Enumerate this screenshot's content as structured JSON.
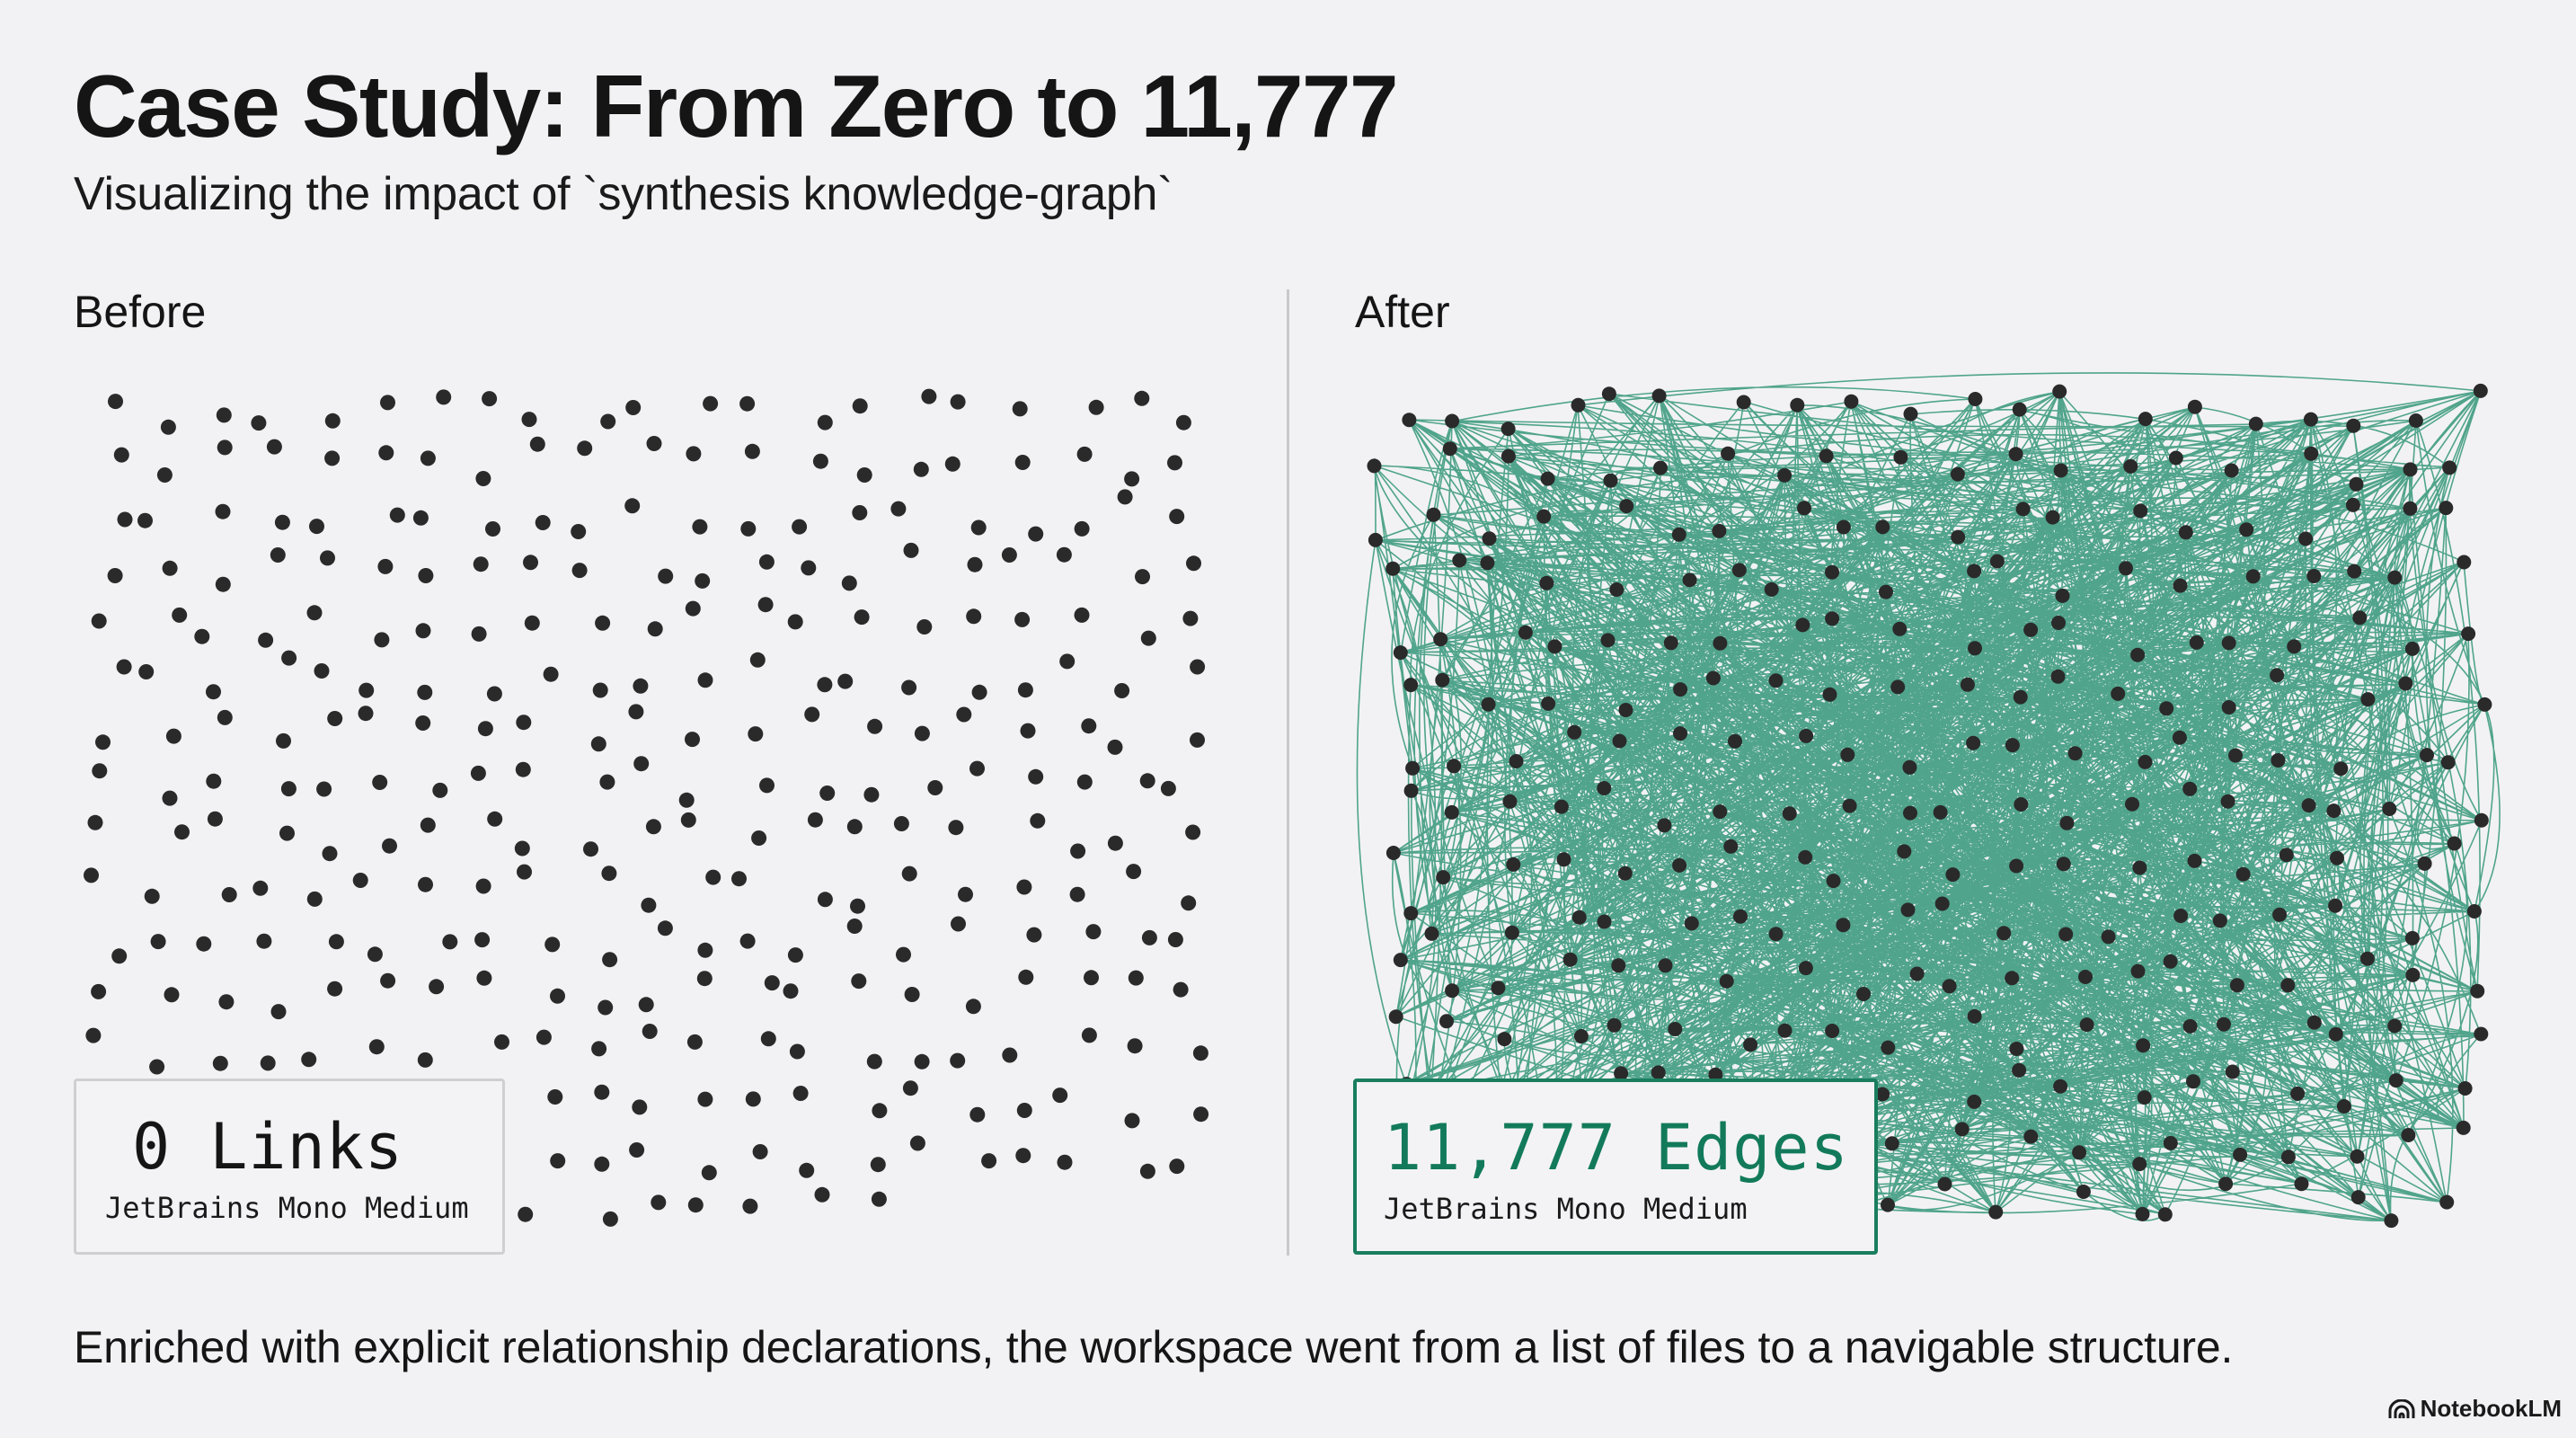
{
  "header": {
    "title": "Case Study: From Zero to 11,777",
    "subtitle": "Visualizing the impact of `synthesis knowledge-graph`"
  },
  "panels": {
    "before": {
      "label": "Before",
      "stat_value": "0 Links",
      "stat_caption": "JetBrains Mono Medium",
      "links": 0
    },
    "after": {
      "label": "After",
      "stat_value": "11,777 Edges",
      "stat_caption": "JetBrains Mono Medium",
      "edges": 11777
    }
  },
  "footer": {
    "caption": "Enriched with explicit relationship declarations, the workspace went from a list of files to a navigable structure.",
    "brand": "NotebookLM"
  },
  "colors": {
    "background": "#f2f2f4",
    "node": "#2a2a2a",
    "edge": "#1a8a68",
    "accent_text": "#127a5a",
    "accent_border": "#1a7e5e",
    "neutral_border": "#cfcfd2",
    "divider": "#c9c9cc"
  },
  "graph_render": {
    "before_node_count": 330,
    "after_node_count": 300,
    "before_area": [
      92,
      425,
      1350,
      1375
    ],
    "after_area": [
      1520,
      425,
      2775,
      1370
    ],
    "rendered_edge_sample": 1800
  }
}
